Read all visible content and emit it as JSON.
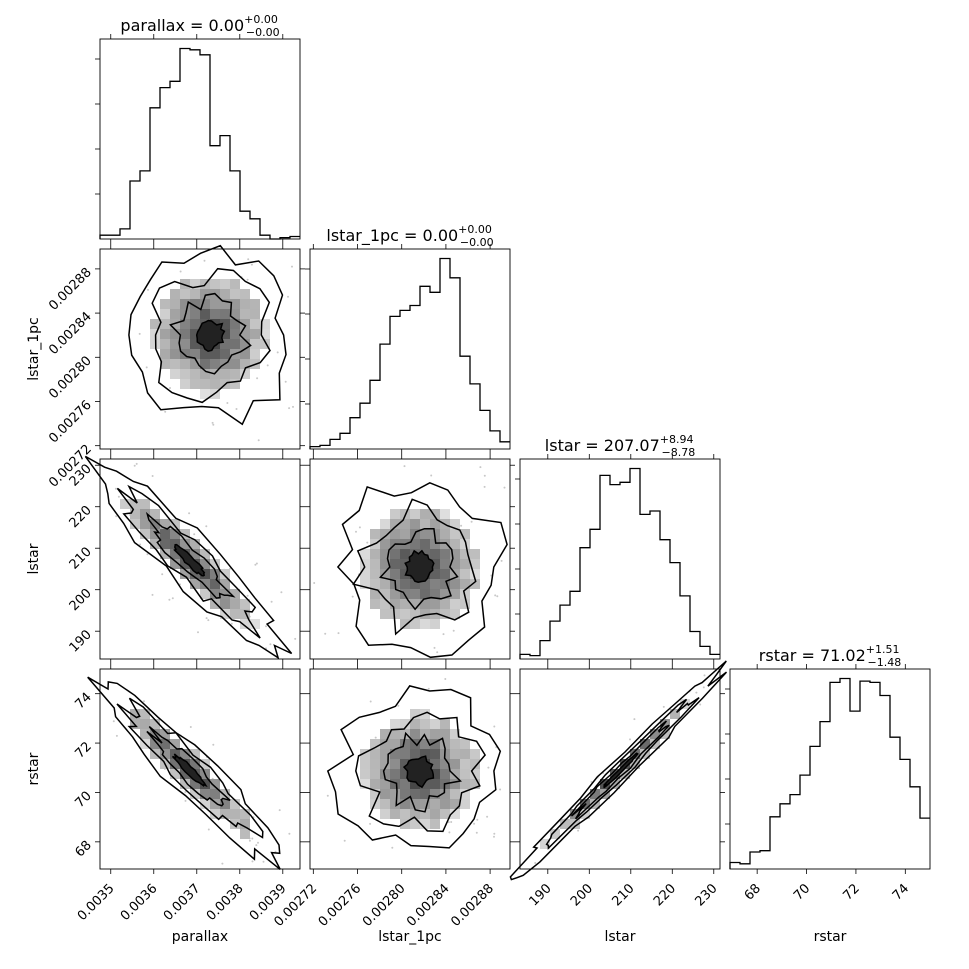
{
  "chart_data": {
    "type": "corner",
    "parameters": [
      "parallax",
      "lstar_1pc",
      "lstar",
      "rstar"
    ],
    "titles": [
      {
        "prefix": "parallax = ",
        "value": "0.00",
        "plus": "+0.00",
        "minus": "−0.00"
      },
      {
        "prefix": "lstar_1pc = ",
        "value": "0.00",
        "plus": "+0.00",
        "minus": "−0.00"
      },
      {
        "prefix": "lstar = ",
        "value": "207.07",
        "plus": "+8.94",
        "minus": "−8.78"
      },
      {
        "prefix": "rstar = ",
        "value": "71.02",
        "plus": "+1.51",
        "minus": "−1.48"
      }
    ],
    "ranges": [
      [
        0.003475,
        0.00394
      ],
      [
        0.002717,
        0.002898
      ],
      [
        183.3,
        231.5
      ],
      [
        66.9,
        75.0
      ]
    ],
    "ticks": [
      {
        "values": [
          0.0035,
          0.0036,
          0.0037,
          0.0038,
          0.0039
        ],
        "labels": [
          "0.0035",
          "0.0036",
          "0.0037",
          "0.0038",
          "0.0039"
        ]
      },
      {
        "values": [
          0.00272,
          0.00276,
          0.0028,
          0.00284,
          0.00288
        ],
        "labels": [
          "0.00272",
          "0.00276",
          "0.00280",
          "0.00284",
          "0.00288"
        ]
      },
      {
        "values": [
          190,
          200,
          210,
          220,
          230
        ],
        "labels": [
          "190",
          "200",
          "210",
          "220",
          "230"
        ]
      },
      {
        "values": [
          68,
          70,
          72,
          74
        ],
        "labels": [
          "68",
          "70",
          "72",
          "74"
        ]
      }
    ],
    "histograms": [
      [
        0.3,
        0.3,
        0.8,
        4.6,
        5.4,
        10.4,
        12.0,
        12.5,
        15.1,
        15.0,
        14.6,
        7.4,
        8.2,
        5.4,
        2.2,
        1.6,
        0.3,
        0.0,
        0.1,
        0.2
      ],
      [
        0.2,
        0.3,
        0.8,
        1.3,
        2.6,
        3.8,
        5.7,
        8.7,
        11.0,
        11.5,
        11.9,
        13.5,
        13.0,
        15.8,
        14.2,
        7.7,
        5.4,
        3.2,
        1.5,
        0.6
      ],
      [
        0.4,
        0.3,
        1.6,
        3.3,
        4.7,
        5.9,
        9.7,
        11.3,
        16.0,
        15.2,
        15.4,
        16.6,
        12.6,
        12.9,
        10.4,
        8.4,
        5.5,
        2.4,
        1.1,
        0.4
      ],
      [
        0.5,
        0.4,
        1.3,
        1.4,
        4.0,
        5.0,
        5.7,
        7.2,
        9.4,
        11.3,
        14.3,
        14.6,
        12.1,
        14.4,
        14.3,
        13.3,
        10.1,
        8.4,
        6.3,
        3.9
      ]
    ]
  }
}
